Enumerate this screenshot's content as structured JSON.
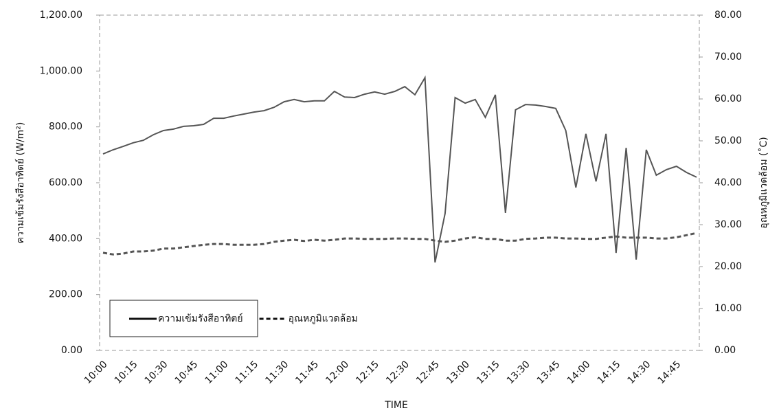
{
  "chart_data": {
    "type": "line",
    "x_label": "TIME",
    "y_label": "ความเข้มรังสีอาทิตย์ (W/m²)",
    "y2_label": "อุณหภูมิแวดล้อม (˚C)",
    "categories": [
      "10:00",
      null,
      null,
      "10:15",
      null,
      null,
      "10:30",
      null,
      null,
      "10:45",
      null,
      null,
      "11:00",
      null,
      null,
      "11:15",
      null,
      null,
      "11:30",
      null,
      null,
      "11:45",
      null,
      null,
      "12:00",
      null,
      null,
      "12:15",
      null,
      null,
      "12:30",
      null,
      null,
      "12:45",
      null,
      null,
      "13:00",
      null,
      null,
      "13:15",
      null,
      null,
      "13:30",
      null,
      null,
      "13:45",
      null,
      null,
      "14:00",
      null,
      null,
      "14:15",
      null,
      null,
      "14:30",
      null,
      null,
      "14:45",
      null,
      null
    ],
    "series": [
      {
        "name": "ความเข้มรังสีอาทิตย์",
        "color": "#555555",
        "line_style": "solid",
        "values": [
          703,
          718,
          730,
          743,
          752,
          772,
          787,
          792,
          802,
          804,
          809,
          831,
          831,
          839,
          846,
          853,
          858,
          870,
          890,
          898,
          890,
          893,
          893,
          927,
          907,
          905,
          917,
          925,
          917,
          927,
          944,
          915,
          976,
          315,
          490,
          905,
          885,
          898,
          834,
          915,
          492,
          861,
          880,
          878,
          873,
          866,
          787,
          583,
          775,
          605,
          775,
          349,
          725,
          325,
          718,
          627,
          647,
          659,
          637,
          620
        ]
      },
      {
        "name": "อุณหภูมิแวดล้อม",
        "color": "#555555",
        "line_style": "dashed",
        "axis": "y2",
        "values": [
          23.3,
          22.9,
          23.1,
          23.6,
          23.6,
          23.8,
          24.3,
          24.3,
          24.6,
          24.9,
          25.2,
          25.4,
          25.4,
          25.2,
          25.2,
          25.2,
          25.4,
          25.9,
          26.2,
          26.4,
          26.1,
          26.4,
          26.2,
          26.4,
          26.7,
          26.7,
          26.6,
          26.6,
          26.6,
          26.7,
          26.7,
          26.6,
          26.6,
          26.2,
          25.9,
          26.2,
          26.7,
          27.0,
          26.6,
          26.6,
          26.2,
          26.2,
          26.6,
          26.7,
          26.9,
          26.9,
          26.7,
          26.7,
          26.6,
          26.6,
          26.9,
          27.2,
          26.9,
          26.9,
          26.9,
          26.7,
          26.7,
          27.0,
          27.5,
          28.0
        ]
      }
    ],
    "ylim": [
      0,
      1200
    ],
    "yticks": [
      {
        "value": 0,
        "label": "0.00"
      },
      {
        "value": 200,
        "label": "200.00"
      },
      {
        "value": 400,
        "label": "400.00"
      },
      {
        "value": 600,
        "label": "600.00"
      },
      {
        "value": 800,
        "label": "800.00"
      },
      {
        "value": 1000,
        "label": "1,000.00"
      },
      {
        "value": 1200,
        "label": "1,200.00"
      }
    ],
    "y2lim": [
      0,
      80
    ],
    "y2ticks": [
      {
        "value": 0,
        "label": "0.00"
      },
      {
        "value": 10,
        "label": "10.00"
      },
      {
        "value": 20,
        "label": "20.00"
      },
      {
        "value": 30,
        "label": "30.00"
      },
      {
        "value": 40,
        "label": "40.00"
      },
      {
        "value": 50,
        "label": "50.00"
      },
      {
        "value": 60,
        "label": "60.00"
      },
      {
        "value": 70,
        "label": "70.00"
      },
      {
        "value": 80,
        "label": "80.00"
      }
    ],
    "grid": false,
    "legend": "lower left"
  }
}
